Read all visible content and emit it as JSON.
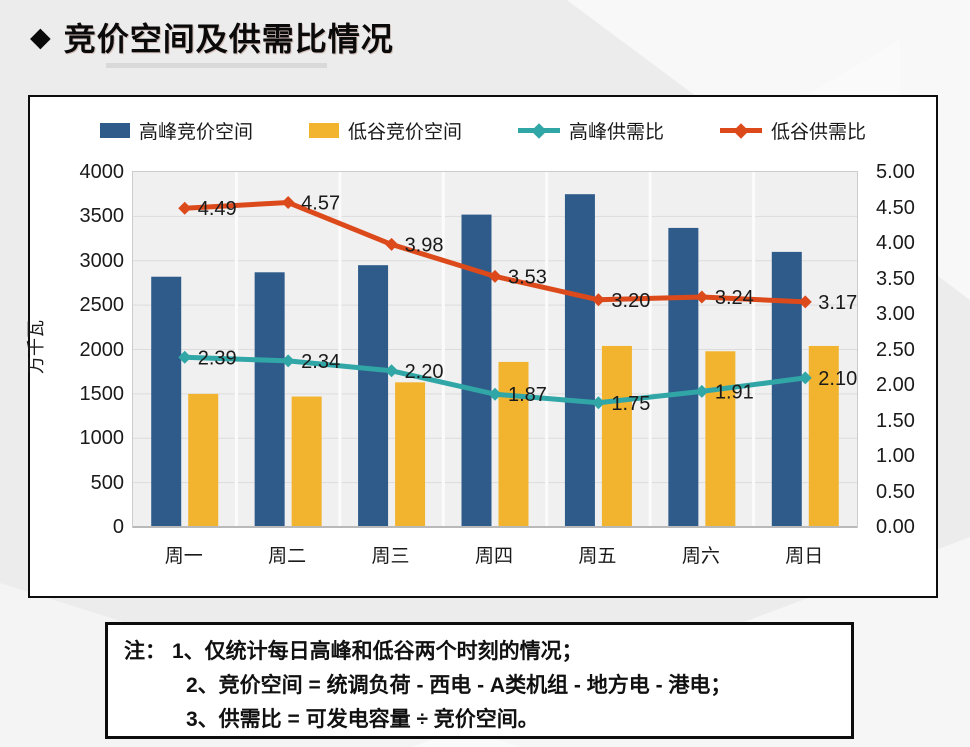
{
  "page": {
    "bullet": "◆",
    "title": "竞价空间及供需比情况"
  },
  "chart_data": {
    "type": "bar",
    "subtype": "combo-bar-line-dual-axis",
    "categories": [
      "周一",
      "周二",
      "周三",
      "周四",
      "周五",
      "周六",
      "周日"
    ],
    "series": [
      {
        "name": "高峰竞价空间",
        "kind": "bar",
        "axis": "left",
        "color": "#2E5B8A",
        "values": [
          2820,
          2870,
          2950,
          3520,
          3750,
          3370,
          3100
        ]
      },
      {
        "name": "低谷竞价空间",
        "kind": "bar",
        "axis": "left",
        "color": "#F2B32E",
        "values": [
          1500,
          1470,
          1630,
          1860,
          2040,
          1980,
          2040
        ]
      },
      {
        "name": "高峰供需比",
        "kind": "line",
        "axis": "right",
        "color": "#31A6A6",
        "values": [
          2.39,
          2.34,
          2.2,
          1.87,
          1.75,
          1.91,
          2.1
        ],
        "labels": [
          "2.39",
          "2.34",
          "2.20",
          "1.87",
          "1.75",
          "1.91",
          "2.10"
        ]
      },
      {
        "name": "低谷供需比",
        "kind": "line",
        "axis": "right",
        "color": "#DC4A1C",
        "values": [
          4.49,
          4.57,
          3.98,
          3.53,
          3.2,
          3.24,
          3.17
        ],
        "labels": [
          "4.49",
          "4.57",
          "3.98",
          "3.53",
          "3.20",
          "3.24",
          "3.17"
        ]
      }
    ],
    "left_axis": {
      "label": "万千瓦",
      "min": 0,
      "max": 4000,
      "step": 500,
      "ticks": [
        "4000",
        "3500",
        "3000",
        "2500",
        "2000",
        "1500",
        "1000",
        "500",
        "0"
      ]
    },
    "right_axis": {
      "label": "",
      "min": 0,
      "max": 5,
      "step": 0.5,
      "ticks": [
        "5.00",
        "4.50",
        "4.00",
        "3.50",
        "3.00",
        "2.50",
        "2.00",
        "1.50",
        "1.00",
        "0.50",
        "0.00"
      ]
    },
    "grid": true,
    "legend_position": "top"
  },
  "note": {
    "prefix": "注：",
    "lines": [
      "1、仅统计每日高峰和低谷两个时刻的情况；",
      "2、竞价空间 = 统调负荷 - 西电 - A类机组 - 地方电 - 港电；",
      "3、供需比 = 可发电容量 ÷ 竞价空间。"
    ]
  }
}
